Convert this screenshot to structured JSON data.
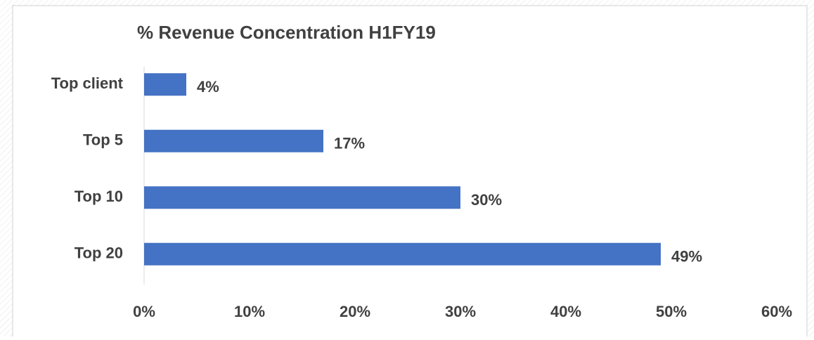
{
  "chart_data": {
    "type": "bar",
    "orientation": "horizontal",
    "title": "% Revenue Concentration H1FY19",
    "categories": [
      "Top client",
      "Top 5",
      "Top 10",
      "Top 20"
    ],
    "values": [
      4,
      17,
      30,
      49
    ],
    "value_labels": [
      "4%",
      "17%",
      "30%",
      "49%"
    ],
    "color": "#4472c4",
    "xlim": [
      0,
      60
    ],
    "xticks": [
      {
        "value": 0,
        "label": "0%"
      },
      {
        "value": 10,
        "label": "10%"
      },
      {
        "value": 20,
        "label": "20%"
      },
      {
        "value": 30,
        "label": "30%"
      },
      {
        "value": 40,
        "label": "40%"
      },
      {
        "value": 50,
        "label": "50%"
      },
      {
        "value": 60,
        "label": "60%"
      }
    ],
    "grid": false
  }
}
